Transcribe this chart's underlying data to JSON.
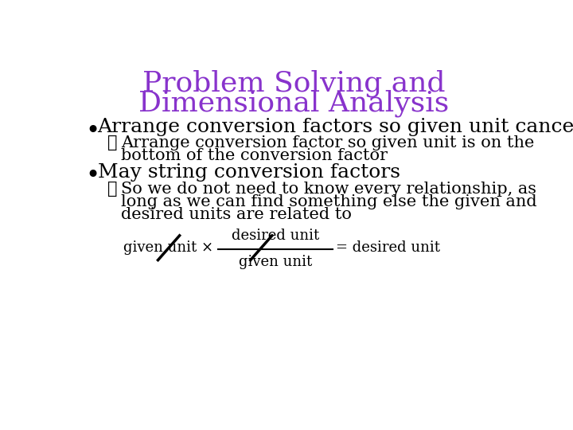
{
  "title_line1": "Problem Solving and",
  "title_line2": "Dimensional Analysis",
  "title_color": "#8833CC",
  "title_fontsize": 26,
  "background_color": "#FFFFFF",
  "bullet1": "Arrange conversion factors so given unit cancels",
  "bullet1_fontsize": 18,
  "check1_line1": "Arrange conversion factor so given unit is on the",
  "check1_line2": "bottom of the conversion factor",
  "check_fontsize": 15,
  "bullet2": "May string conversion factors",
  "bullet2_fontsize": 18,
  "check2_line1": "So we do not need to know every relationship, as",
  "check2_line2": "long as we can find something else the given and",
  "check2_line3": "desired units are related to",
  "formula_numerator": "desired unit",
  "formula_denominator": "given unit",
  "formula_left": "given unit ×",
  "formula_right": "= desired unit",
  "formula_fontsize": 13,
  "text_color": "#000000",
  "bullet_color": "#000000",
  "checkmark": "✓"
}
